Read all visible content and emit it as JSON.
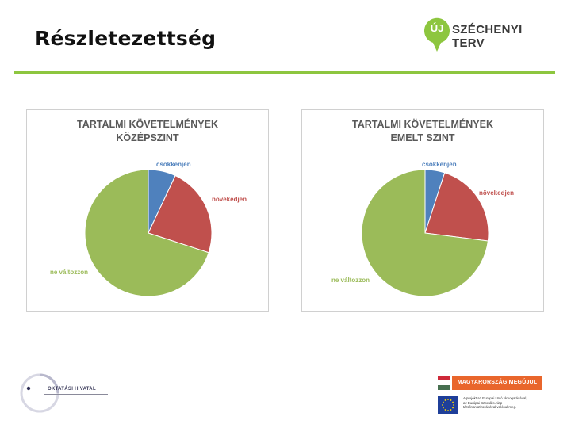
{
  "slide": {
    "title": "Részletezettség"
  },
  "brand": {
    "pin_text": "ÚJ",
    "name": "SZÉCHENYI TERV"
  },
  "chart_data": [
    {
      "type": "pie",
      "title": "TARTALMI KÖVETELMÉNYEK KÖZÉPSZINT",
      "title_lines": [
        "TARTALMI KÖVETELMÉNYEK",
        "KÖZÉPSZINT"
      ],
      "categories": [
        "csökkenjen",
        "növekedjen",
        "ne változzon"
      ],
      "values": [
        7,
        23,
        70
      ],
      "colors": [
        "#4f81bd",
        "#c0504d",
        "#9bbb59"
      ],
      "label_colors": [
        "#4f81bd",
        "#c0504d",
        "#9bbb59"
      ],
      "start_angle_deg": 0,
      "direction": "clockwise",
      "legend": "none",
      "data_labels": "category names outside slices"
    },
    {
      "type": "pie",
      "title": "TARTALMI KÖVETELMÉNYEK EMELT SZINT",
      "title_lines": [
        "TARTALMI KÖVETELMÉNYEK",
        "EMELT SZINT"
      ],
      "categories": [
        "csökkenjen",
        "növekedjen",
        "ne változzon"
      ],
      "values": [
        5,
        22,
        73
      ],
      "colors": [
        "#4f81bd",
        "#c0504d",
        "#9bbb59"
      ],
      "label_colors": [
        "#4f81bd",
        "#c0504d",
        "#9bbb59"
      ],
      "start_angle_deg": 0,
      "direction": "clockwise",
      "legend": "none",
      "data_labels": "category names outside slices"
    }
  ],
  "footer": {
    "left_logo_text": "OKTATÁSI HIVATAL",
    "banner_text": "MAGYARORSZÁG MEGÚJUL",
    "eu_text_lines": [
      "A projekt az Európai Unió támogatásával,",
      "az Európai Szociális Alap",
      "társfinanszírozásával valósul meg."
    ],
    "colors": {
      "accent_green": "#8dc63f",
      "banner_orange": "#e9662c",
      "eu_blue": "#1f3f99"
    }
  }
}
